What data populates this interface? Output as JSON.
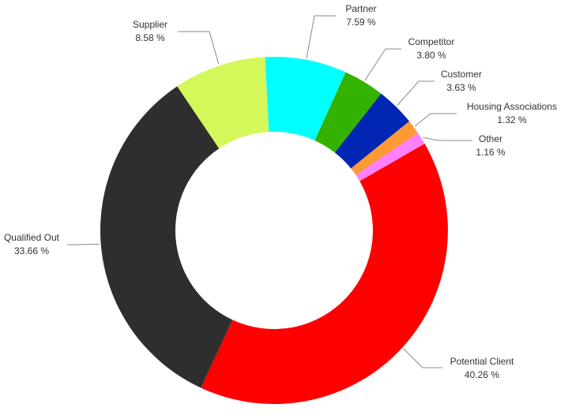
{
  "chart_data": {
    "type": "donut",
    "categories": [
      "Potential Client",
      "Qualified Out",
      "Supplier",
      "Partner",
      "Competitor",
      "Customer",
      "Housing Associations",
      "Other"
    ],
    "values": [
      40.26,
      33.66,
      8.58,
      7.59,
      3.8,
      3.63,
      1.32,
      1.16
    ],
    "value_labels": [
      "40.26 %",
      "33.66 %",
      "8.58 %",
      "7.59 %",
      "3.80 %",
      "3.63 %",
      "1.32 %",
      "1.16 %"
    ],
    "colors": [
      "#ff0000",
      "#2e2e2e",
      "#d4f75a",
      "#00ffff",
      "#33b300",
      "#0026b3",
      "#ff9933",
      "#ff80ff"
    ]
  }
}
